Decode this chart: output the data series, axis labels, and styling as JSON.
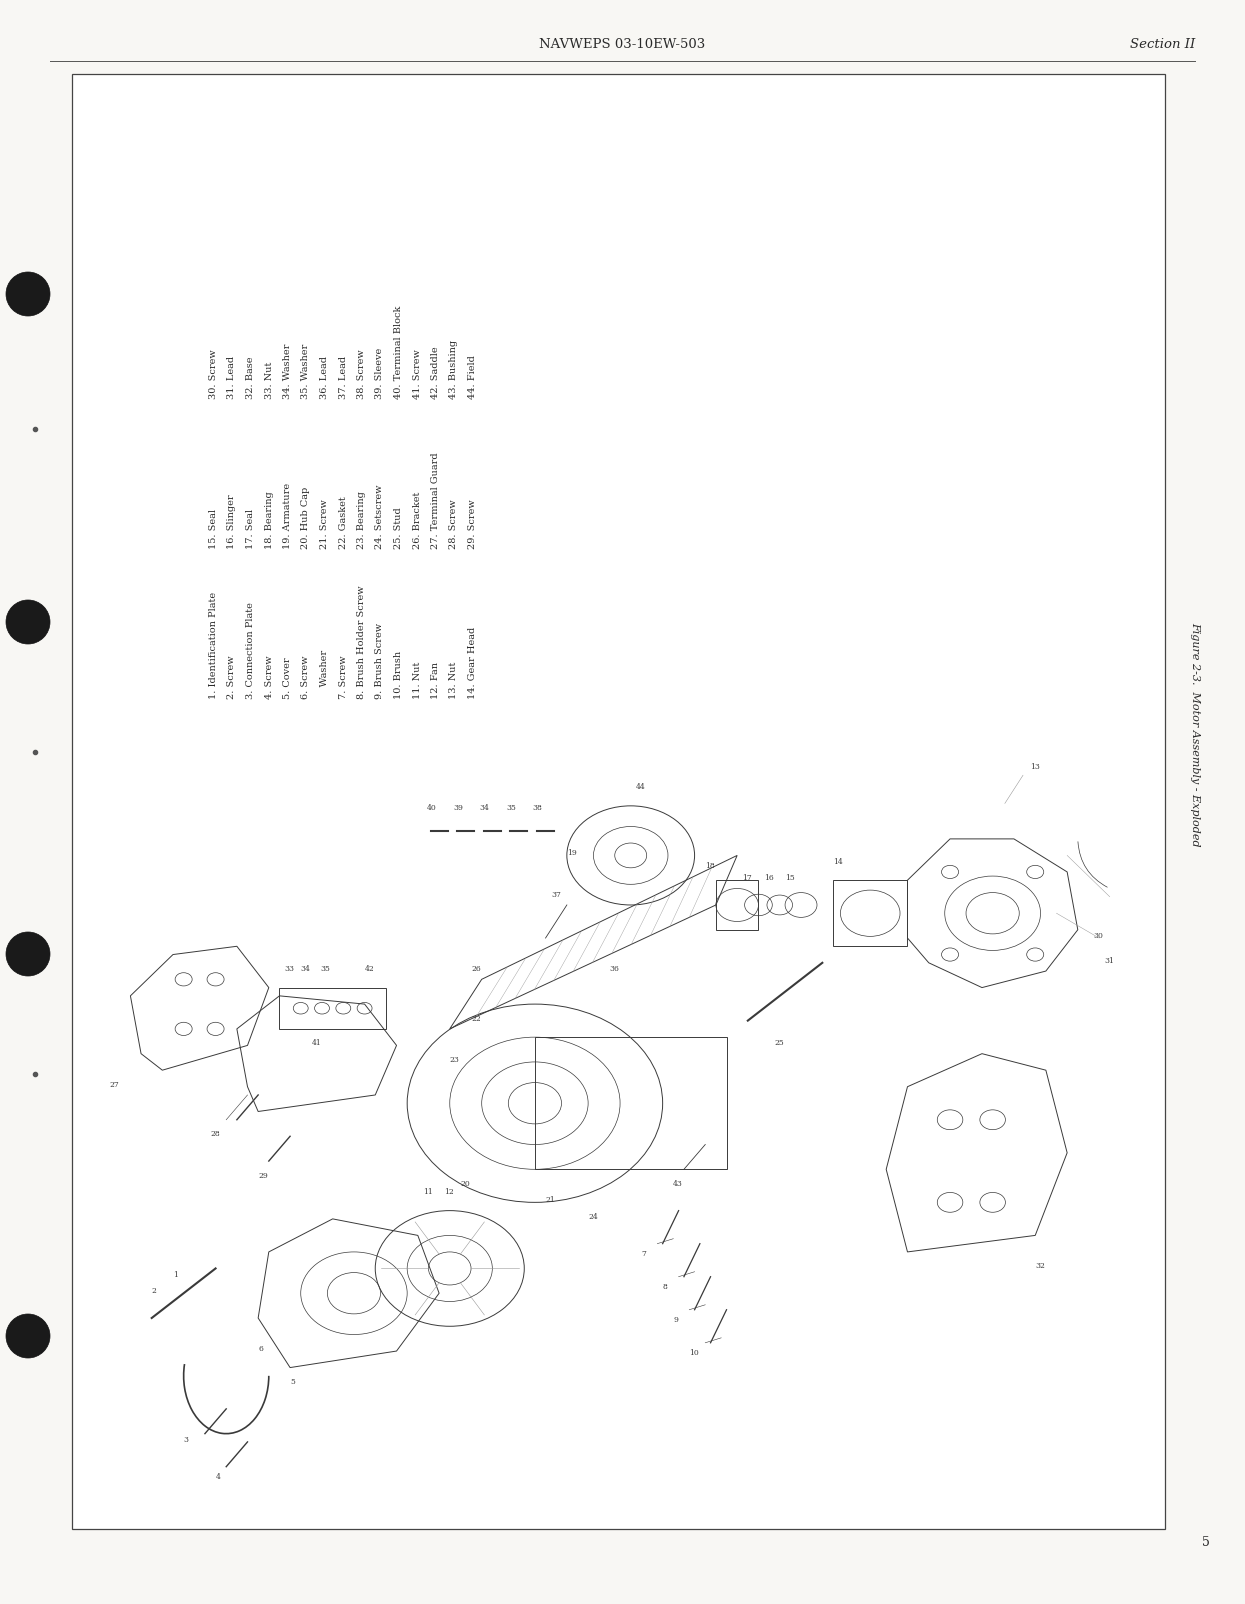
{
  "page_bg": "#f8f7f4",
  "border_color": "#444444",
  "text_color": "#2a2a2a",
  "header_text": "NAVWEPS 03-10EW-503",
  "header_right": "Section II",
  "page_number": "5",
  "figure_caption": "Figure 2-3.  Motor Assembly - Exploded",
  "parts_list_col1": [
    "1. Identification Plate",
    "2. Screw",
    "3. Connection Plate",
    "4. Screw",
    "5. Cover",
    "6. Screw",
    "    Washer",
    "7. Screw",
    "8. Brush Holder Screw",
    "9. Brush Screw",
    "10. Brush",
    "11. Nut",
    "12. Fan",
    "13. Nut",
    "14. Gear Head"
  ],
  "parts_list_col2": [
    "15. Seal",
    "16. Slinger",
    "17. Seal",
    "18. Bearing",
    "19. Armature",
    "20. Hub Cap",
    "21. Screw",
    "22. Gasket",
    "23. Bearing",
    "24. Setscrew",
    "25. Stud",
    "26. Bracket",
    "27. Terminal Guard",
    "28. Screw",
    "29. Screw"
  ],
  "parts_list_col3": [
    "30. Screw",
    "31. Lead",
    "32. Base",
    "33. Nut",
    "34. Washer",
    "35. Washer",
    "36. Lead",
    "37. Lead",
    "38. Screw",
    "39. Sleeve",
    "40. Terminal Block",
    "41. Screw",
    "42. Saddle",
    "43. Bushing",
    "44. Field"
  ],
  "font_size_header": 9.5,
  "font_size_parts": 7.0,
  "font_size_caption": 8.0,
  "font_size_page_num": 9
}
